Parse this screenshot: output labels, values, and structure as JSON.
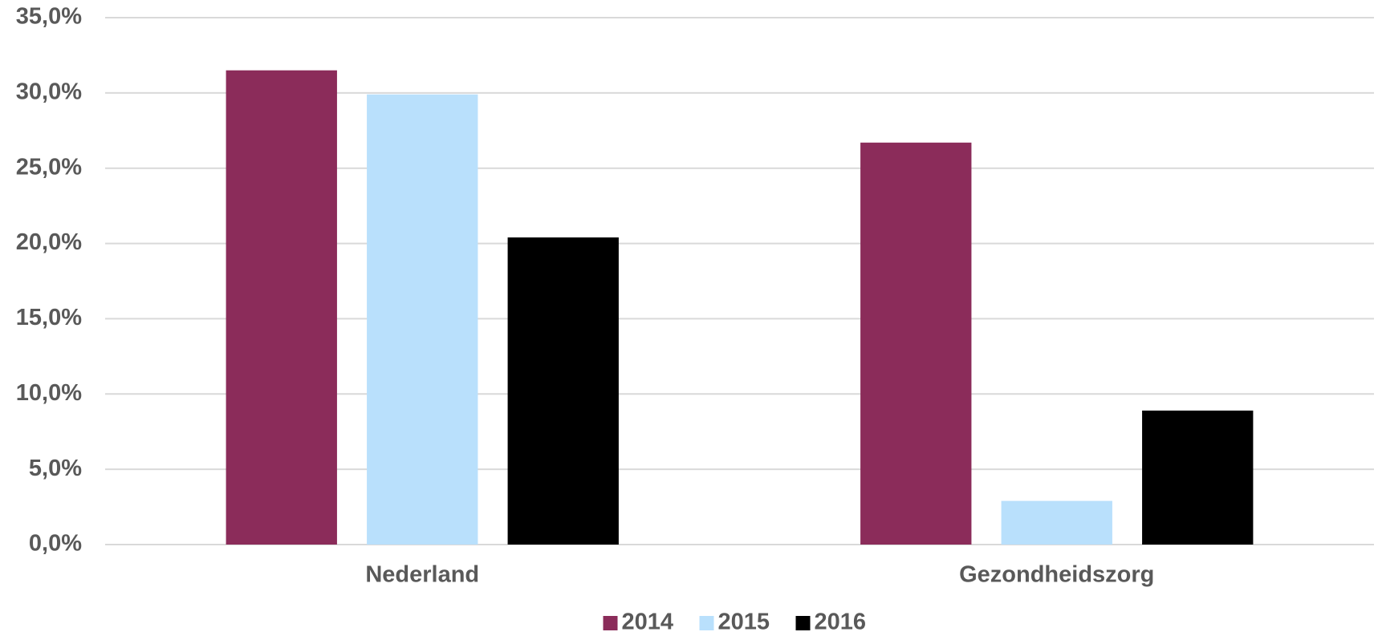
{
  "chart_data": {
    "type": "bar",
    "categories": [
      "Nederland",
      "Gezondheidszorg"
    ],
    "series": [
      {
        "name": "2014",
        "color": "#8b2c5a",
        "values": [
          31.5,
          26.7
        ]
      },
      {
        "name": "2015",
        "color": "#b9e0fc",
        "values": [
          29.9,
          2.9
        ]
      },
      {
        "name": "2016",
        "color": "#000000",
        "values": [
          20.4,
          8.9
        ]
      }
    ],
    "ylim": [
      0,
      35
    ],
    "yticks": [
      {
        "value": 0,
        "label": "0,0%"
      },
      {
        "value": 5,
        "label": "5,0%"
      },
      {
        "value": 10,
        "label": "10,0%"
      },
      {
        "value": 15,
        "label": "15,0%"
      },
      {
        "value": 20,
        "label": "20,0%"
      },
      {
        "value": 25,
        "label": "25,0%"
      },
      {
        "value": 30,
        "label": "30,0%"
      },
      {
        "value": 35,
        "label": "35,0%"
      }
    ],
    "grid": true,
    "legend": "bottom"
  }
}
